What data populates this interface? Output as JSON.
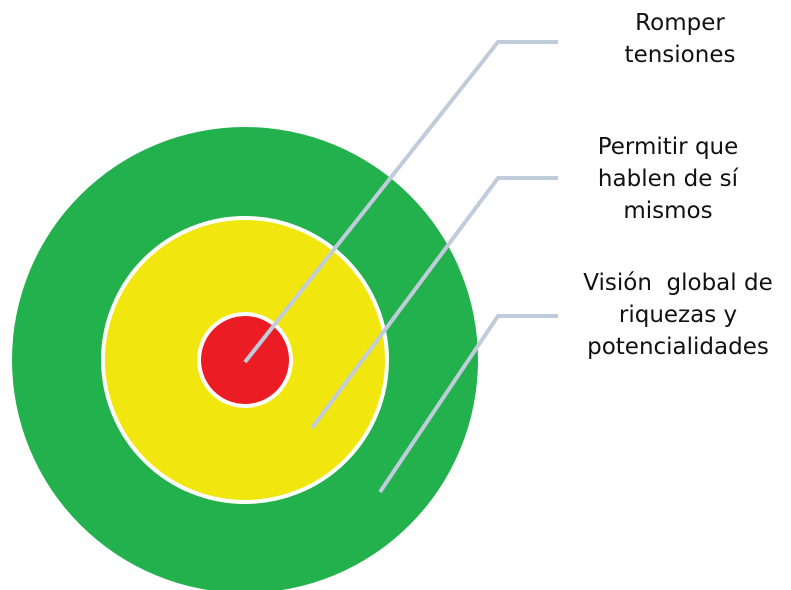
{
  "labels": [
    {
      "lines": [
        "Romper",
        "tensiones"
      ]
    },
    {
      "lines": [
        "Permitir que",
        "hablen de sí",
        "mismos"
      ]
    },
    {
      "lines": [
        "Visión  global de",
        "riquezas y",
        "potencialidades"
      ]
    }
  ]
}
